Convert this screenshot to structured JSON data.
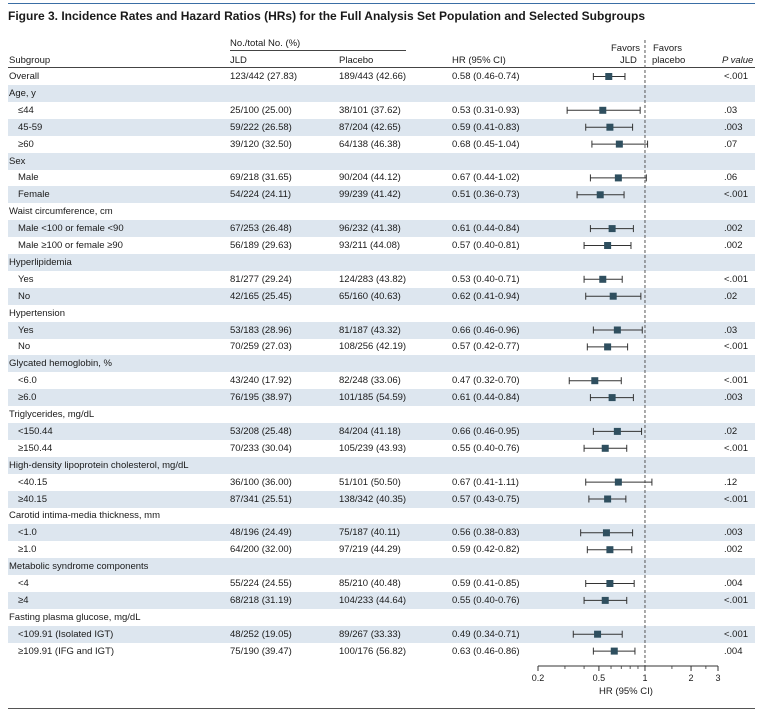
{
  "figure": {
    "title": "Figure 3. Incidence Rates and Hazard Ratios (HRs) for the Full Analysis Set Population and Selected Subgroups"
  },
  "columns": {
    "group_header": "No./total No. (%)",
    "subgroup": "Subgroup",
    "jld": "JLD",
    "placebo": "Placebo",
    "hr": "HR (95% CI)",
    "favors_jld_1": "Favors",
    "favors_jld_2": "JLD",
    "favors_placebo_1": "Favors",
    "favors_placebo_2": "placebo",
    "pvalue": "P value"
  },
  "rows": [
    {
      "kind": "data",
      "label": "Overall",
      "jld": "123/442 (27.83)",
      "placebo": "189/443 (42.66)",
      "hr_text": "0.58 (0.46-0.74)",
      "p": "<.001"
    },
    {
      "kind": "header",
      "label": "Age, y"
    },
    {
      "kind": "data",
      "label": "≤44",
      "jld": "25/100 (25.00)",
      "placebo": "38/101 (37.62)",
      "hr_text": "0.53 (0.31-0.93)",
      "p": ".03"
    },
    {
      "kind": "data",
      "label": "45-59",
      "jld": "59/222 (26.58)",
      "placebo": "87/204 (42.65)",
      "hr_text": "0.59 (0.41-0.83)",
      "p": ".003"
    },
    {
      "kind": "data",
      "label": "≥60",
      "jld": "39/120 (32.50)",
      "placebo": "64/138 (46.38)",
      "hr_text": "0.68 (0.45-1.04)",
      "p": ".07"
    },
    {
      "kind": "header",
      "label": "Sex"
    },
    {
      "kind": "data",
      "label": "Male",
      "jld": "69/218 (31.65)",
      "placebo": "90/204 (44.12)",
      "hr_text": "0.67 (0.44-1.02)",
      "p": ".06"
    },
    {
      "kind": "data",
      "label": "Female",
      "jld": "54/224 (24.11)",
      "placebo": "99/239 (41.42)",
      "hr_text": "0.51 (0.36-0.73)",
      "p": "<.001"
    },
    {
      "kind": "header",
      "label": "Waist circumference, cm"
    },
    {
      "kind": "data",
      "label": "Male <100 or female <90",
      "jld": "67/253 (26.48)",
      "placebo": "96/232 (41.38)",
      "hr_text": "0.61 (0.44-0.84)",
      "p": ".002"
    },
    {
      "kind": "data",
      "label": "Male ≥100 or female ≥90",
      "jld": "56/189 (29.63)",
      "placebo": "93/211 (44.08)",
      "hr_text": "0.57 (0.40-0.81)",
      "p": ".002"
    },
    {
      "kind": "header",
      "label": "Hyperlipidemia"
    },
    {
      "kind": "data",
      "label": "Yes",
      "jld": "81/277 (29.24)",
      "placebo": "124/283 (43.82)",
      "hr_text": "0.53 (0.40-0.71)",
      "p": "<.001"
    },
    {
      "kind": "data",
      "label": "No",
      "jld": "42/165 (25.45)",
      "placebo": "65/160 (40.63)",
      "hr_text": "0.62 (0.41-0.94)",
      "p": ".02"
    },
    {
      "kind": "header",
      "label": "Hypertension"
    },
    {
      "kind": "data",
      "label": "Yes",
      "jld": "53/183 (28.96)",
      "placebo": "81/187 (43.32)",
      "hr_text": "0.66 (0.46-0.96)",
      "p": ".03"
    },
    {
      "kind": "data",
      "label": "No",
      "jld": "70/259 (27.03)",
      "placebo": "108/256 (42.19)",
      "hr_text": "0.57 (0.42-0.77)",
      "p": "<.001"
    },
    {
      "kind": "header",
      "label": "Glycated hemoglobin, %"
    },
    {
      "kind": "data",
      "label": "<6.0",
      "jld": "43/240 (17.92)",
      "placebo": "82/248 (33.06)",
      "hr_text": "0.47 (0.32-0.70)",
      "p": "<.001"
    },
    {
      "kind": "data",
      "label": "≥6.0",
      "jld": "76/195 (38.97)",
      "placebo": "101/185 (54.59)",
      "hr_text": "0.61 (0.44-0.84)",
      "p": ".003"
    },
    {
      "kind": "header",
      "label": "Triglycerides, mg/dL"
    },
    {
      "kind": "data",
      "label": "<150.44",
      "jld": "53/208 (25.48)",
      "placebo": "84/204 (41.18)",
      "hr_text": "0.66 (0.46-0.95)",
      "p": ".02"
    },
    {
      "kind": "data",
      "label": "≥150.44",
      "jld": "70/233 (30.04)",
      "placebo": "105/239 (43.93)",
      "hr_text": "0.55 (0.40-0.76)",
      "p": "<.001"
    },
    {
      "kind": "header",
      "label": "High-density lipoprotein cholesterol, mg/dL"
    },
    {
      "kind": "data",
      "label": "<40.15",
      "jld": "36/100 (36.00)",
      "placebo": "51/101 (50.50)",
      "hr_text": "0.67 (0.41-1.11)",
      "p": ".12"
    },
    {
      "kind": "data",
      "label": "≥40.15",
      "jld": "87/341 (25.51)",
      "placebo": "138/342 (40.35)",
      "hr_text": "0.57 (0.43-0.75)",
      "p": "<.001"
    },
    {
      "kind": "header",
      "label": "Carotid intima-media thickness, mm"
    },
    {
      "kind": "data",
      "label": "<1.0",
      "jld": "48/196 (24.49)",
      "placebo": "75/187 (40.11)",
      "hr_text": "0.56 (0.38-0.83)",
      "p": ".003"
    },
    {
      "kind": "data",
      "label": "≥1.0",
      "jld": "64/200 (32.00)",
      "placebo": "97/219 (44.29)",
      "hr_text": "0.59 (0.42-0.82)",
      "p": ".002"
    },
    {
      "kind": "header",
      "label": "Metabolic syndrome components"
    },
    {
      "kind": "data",
      "label": "<4",
      "jld": "55/224 (24.55)",
      "placebo": "85/210 (40.48)",
      "hr_text": "0.59 (0.41-0.85)",
      "p": ".004"
    },
    {
      "kind": "data",
      "label": "≥4",
      "jld": "68/218 (31.19)",
      "placebo": "104/233 (44.64)",
      "hr_text": "0.55 (0.40-0.76)",
      "p": "<.001"
    },
    {
      "kind": "header",
      "label": "Fasting plasma glucose, mg/dL"
    },
    {
      "kind": "data",
      "label": "<109.91 (Isolated IGT)",
      "jld": "48/252 (19.05)",
      "placebo": "89/267 (33.33)",
      "hr_text": "0.49 (0.34-0.71)",
      "p": "<.001"
    },
    {
      "kind": "data",
      "label": "≥109.91 (IFG and IGT)",
      "jld": "75/190 (39.47)",
      "placebo": "100/176 (56.82)",
      "hr_text": "0.63 (0.46-0.86)",
      "p": ".004"
    }
  ],
  "chart_data": {
    "type": "forest",
    "xscale": "log",
    "xlim": [
      0.2,
      3
    ],
    "xticks": [
      0.2,
      0.5,
      1,
      2,
      3
    ],
    "xticklabels": [
      "0.2",
      "0.5",
      "1",
      "2",
      "3"
    ],
    "xlabel": "HR (95% CI)",
    "reference_line": 1,
    "series": [
      {
        "label": "Overall",
        "hr": 0.58,
        "lo": 0.46,
        "hi": 0.74
      },
      {
        "label": "≤44",
        "hr": 0.53,
        "lo": 0.31,
        "hi": 0.93
      },
      {
        "label": "45-59",
        "hr": 0.59,
        "lo": 0.41,
        "hi": 0.83
      },
      {
        "label": "≥60",
        "hr": 0.68,
        "lo": 0.45,
        "hi": 1.04
      },
      {
        "label": "Male",
        "hr": 0.67,
        "lo": 0.44,
        "hi": 1.02
      },
      {
        "label": "Female",
        "hr": 0.51,
        "lo": 0.36,
        "hi": 0.73
      },
      {
        "label": "Male <100 or female <90",
        "hr": 0.61,
        "lo": 0.44,
        "hi": 0.84
      },
      {
        "label": "Male ≥100 or female ≥90",
        "hr": 0.57,
        "lo": 0.4,
        "hi": 0.81
      },
      {
        "label": "Yes (Hyperlipidemia)",
        "hr": 0.53,
        "lo": 0.4,
        "hi": 0.71
      },
      {
        "label": "No (Hyperlipidemia)",
        "hr": 0.62,
        "lo": 0.41,
        "hi": 0.94
      },
      {
        "label": "Yes (Hypertension)",
        "hr": 0.66,
        "lo": 0.46,
        "hi": 0.96
      },
      {
        "label": "No (Hypertension)",
        "hr": 0.57,
        "lo": 0.42,
        "hi": 0.77
      },
      {
        "label": "<6.0",
        "hr": 0.47,
        "lo": 0.32,
        "hi": 0.7
      },
      {
        "label": "≥6.0",
        "hr": 0.61,
        "lo": 0.44,
        "hi": 0.84
      },
      {
        "label": "<150.44",
        "hr": 0.66,
        "lo": 0.46,
        "hi": 0.95
      },
      {
        "label": "≥150.44",
        "hr": 0.55,
        "lo": 0.4,
        "hi": 0.76
      },
      {
        "label": "<40.15",
        "hr": 0.67,
        "lo": 0.41,
        "hi": 1.11
      },
      {
        "label": "≥40.15",
        "hr": 0.57,
        "lo": 0.43,
        "hi": 0.75
      },
      {
        "label": "<1.0",
        "hr": 0.56,
        "lo": 0.38,
        "hi": 0.83
      },
      {
        "label": "≥1.0",
        "hr": 0.59,
        "lo": 0.42,
        "hi": 0.82
      },
      {
        "label": "<4",
        "hr": 0.59,
        "lo": 0.41,
        "hi": 0.85
      },
      {
        "label": "≥4",
        "hr": 0.55,
        "lo": 0.4,
        "hi": 0.76
      },
      {
        "label": "<109.91 (Isolated IGT)",
        "hr": 0.49,
        "lo": 0.34,
        "hi": 0.71
      },
      {
        "label": "≥109.91 (IFG and IGT)",
        "hr": 0.63,
        "lo": 0.46,
        "hi": 0.86
      }
    ],
    "marker_color": "#2f4f5f",
    "row_shade_color": "#dde6ef"
  }
}
